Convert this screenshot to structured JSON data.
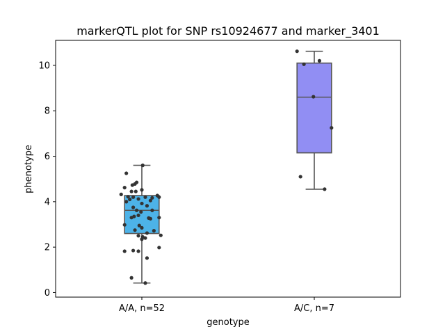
{
  "chart_data": {
    "type": "boxplot",
    "title": "markerQTL plot for SNP rs10924677 and marker_3401",
    "xlabel": "genotype",
    "ylabel": "phenotype",
    "ylim": [
      -0.2,
      11.1
    ],
    "yticks": [
      0,
      2,
      4,
      6,
      8,
      10
    ],
    "grid": false,
    "categories": [
      "A/A, n=52",
      "A/C, n=7"
    ],
    "colors": {
      "box_fill": [
        "#4db3e8",
        "#918ef3"
      ],
      "box_edge": "#555555",
      "points": "#333333"
    },
    "boxes": [
      {
        "category": "A/A, n=52",
        "whisker_low": 0.42,
        "q1": 2.6,
        "median": 3.62,
        "q3": 4.27,
        "whisker_high": 5.6,
        "points": [
          {
            "x": 0.005,
            "y": 5.6
          },
          {
            "x": -0.09,
            "y": 5.25
          },
          {
            "x": -0.1,
            "y": 4.62
          },
          {
            "x": -0.04,
            "y": 4.78
          },
          {
            "x": -0.03,
            "y": 4.85
          },
          {
            "x": 0.0,
            "y": 4.52
          },
          {
            "x": -0.055,
            "y": 4.73
          },
          {
            "x": -0.035,
            "y": 4.45
          },
          {
            "x": -0.06,
            "y": 4.45
          },
          {
            "x": -0.12,
            "y": 4.32
          },
          {
            "x": -0.08,
            "y": 4.22
          },
          {
            "x": -0.05,
            "y": 4.2
          },
          {
            "x": 0.02,
            "y": 4.2
          },
          {
            "x": 0.06,
            "y": 4.17
          },
          {
            "x": 0.09,
            "y": 4.27
          },
          {
            "x": 0.1,
            "y": 4.2
          },
          {
            "x": -0.07,
            "y": 4.1
          },
          {
            "x": -0.02,
            "y": 4.12
          },
          {
            "x": 0.05,
            "y": 4.05
          },
          {
            "x": -0.09,
            "y": 4.0
          },
          {
            "x": 0.0,
            "y": 3.92
          },
          {
            "x": 0.03,
            "y": 3.82
          },
          {
            "x": -0.05,
            "y": 3.75
          },
          {
            "x": 0.06,
            "y": 3.62
          },
          {
            "x": -0.03,
            "y": 3.62
          },
          {
            "x": -0.005,
            "y": 3.55
          },
          {
            "x": -0.045,
            "y": 3.35
          },
          {
            "x": -0.02,
            "y": 3.4
          },
          {
            "x": -0.06,
            "y": 3.3
          },
          {
            "x": 0.04,
            "y": 3.28
          },
          {
            "x": 0.05,
            "y": 3.25
          },
          {
            "x": 0.1,
            "y": 3.3
          },
          {
            "x": -0.1,
            "y": 2.98
          },
          {
            "x": -0.015,
            "y": 2.95
          },
          {
            "x": 0.0,
            "y": 2.85
          },
          {
            "x": 0.07,
            "y": 2.72
          },
          {
            "x": -0.04,
            "y": 2.75
          },
          {
            "x": 0.03,
            "y": 2.62
          },
          {
            "x": 0.11,
            "y": 2.52
          },
          {
            "x": -0.02,
            "y": 2.5
          },
          {
            "x": 0.005,
            "y": 2.45
          },
          {
            "x": 0.02,
            "y": 2.4
          },
          {
            "x": 0.0,
            "y": 2.35
          },
          {
            "x": 0.1,
            "y": 1.98
          },
          {
            "x": -0.1,
            "y": 1.82
          },
          {
            "x": -0.05,
            "y": 1.85
          },
          {
            "x": -0.02,
            "y": 1.82
          },
          {
            "x": 0.03,
            "y": 1.52
          },
          {
            "x": -0.06,
            "y": 0.65
          },
          {
            "x": 0.02,
            "y": 0.42
          }
        ]
      },
      {
        "category": "A/C, n=7",
        "whisker_low": 4.55,
        "q1": 6.15,
        "median": 8.6,
        "q3": 10.1,
        "whisker_high": 10.62,
        "points": [
          {
            "x": -0.1,
            "y": 10.62
          },
          {
            "x": -0.06,
            "y": 10.05
          },
          {
            "x": 0.03,
            "y": 10.2
          },
          {
            "x": -0.005,
            "y": 8.62
          },
          {
            "x": 0.1,
            "y": 7.25
          },
          {
            "x": -0.08,
            "y": 5.1
          },
          {
            "x": 0.06,
            "y": 4.55
          }
        ]
      }
    ]
  }
}
